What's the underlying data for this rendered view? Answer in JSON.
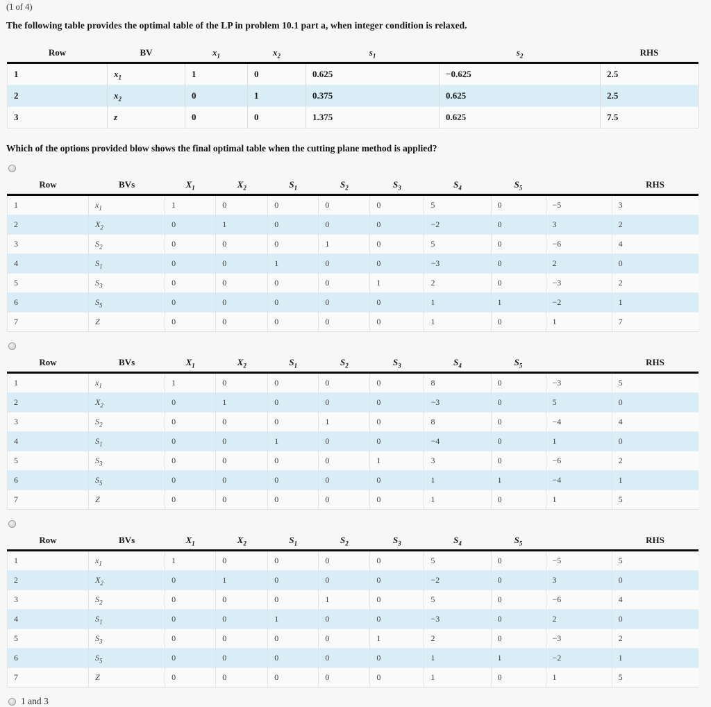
{
  "page": {
    "pagination": "(1 of 4)",
    "intro": "The following table provides the optimal table of the LP in problem 10.1 part a, when integer condition is relaxed.",
    "question": "Which of the options provided blow shows the final optimal table when the cutting plane method is applied?"
  },
  "colors": {
    "row_highlight": "#d9edf7",
    "header_rule": "#0a0a0a",
    "page_background": "#f7f7f7"
  },
  "relaxed_table": {
    "headers": [
      "Row",
      "BV",
      "$x_1",
      "$x_2",
      "$s_1",
      "$s_2",
      "RHS"
    ],
    "rows": [
      [
        "1",
        "$x_1",
        "1",
        "0",
        "0.625",
        "−0.625",
        "2.5"
      ],
      [
        "2",
        "$x_2",
        "0",
        "1",
        "0.375",
        "0.625",
        "2.5"
      ],
      [
        "3",
        "$z",
        "0",
        "0",
        "1.375",
        "0.625",
        "7.5"
      ]
    ]
  },
  "options": [
    {
      "id": "option-1",
      "table": {
        "headers": [
          "Row",
          "BVs",
          "$X_1",
          "$X_2",
          "$S_1",
          "$S_2",
          "$S_3",
          "$S_4",
          "$S_5",
          "",
          "RHS"
        ],
        "rows": [
          [
            "1",
            "$x_1",
            "1",
            "0",
            "0",
            "0",
            "0",
            "5",
            "0",
            "−5",
            "3"
          ],
          [
            "2",
            "$X_2",
            "0",
            "1",
            "0",
            "0",
            "0",
            "−2",
            "0",
            "3",
            "2"
          ],
          [
            "3",
            "$S_2",
            "0",
            "0",
            "0",
            "1",
            "0",
            "5",
            "0",
            "−6",
            "4"
          ],
          [
            "4",
            "$S_1",
            "0",
            "0",
            "1",
            "0",
            "0",
            "−3",
            "0",
            "2",
            "0"
          ],
          [
            "5",
            "$S_3",
            "0",
            "0",
            "0",
            "0",
            "1",
            "2",
            "0",
            "−3",
            "2"
          ],
          [
            "6",
            "$S_5",
            "0",
            "0",
            "0",
            "0",
            "0",
            "1",
            "1",
            "−2",
            "1"
          ],
          [
            "7",
            "$Z",
            "0",
            "0",
            "0",
            "0",
            "0",
            "1",
            "0",
            "1",
            "7"
          ]
        ]
      }
    },
    {
      "id": "option-2",
      "table": {
        "headers": [
          "Row",
          "BVs",
          "$X_1",
          "$X_2",
          "$S_1",
          "$S_2",
          "$S_3",
          "$S_4",
          "$S_5",
          "",
          "RHS"
        ],
        "rows": [
          [
            "1",
            "$x_1",
            "1",
            "0",
            "0",
            "0",
            "0",
            "8",
            "0",
            "−3",
            "5"
          ],
          [
            "2",
            "$X_2",
            "0",
            "1",
            "0",
            "0",
            "0",
            "−3",
            "0",
            "5",
            "0"
          ],
          [
            "3",
            "$S_2",
            "0",
            "0",
            "0",
            "1",
            "0",
            "8",
            "0",
            "−4",
            "4"
          ],
          [
            "4",
            "$S_1",
            "0",
            "0",
            "1",
            "0",
            "0",
            "−4",
            "0",
            "1",
            "0"
          ],
          [
            "5",
            "$S_3",
            "0",
            "0",
            "0",
            "0",
            "1",
            "3",
            "0",
            "−6",
            "2"
          ],
          [
            "6",
            "$S_5",
            "0",
            "0",
            "0",
            "0",
            "0",
            "1",
            "1",
            "−4",
            "1"
          ],
          [
            "7",
            "$Z",
            "0",
            "0",
            "0",
            "0",
            "0",
            "1",
            "0",
            "1",
            "5"
          ]
        ]
      }
    },
    {
      "id": "option-3",
      "table": {
        "headers": [
          "Row",
          "BVs",
          "$X_1",
          "$X_2",
          "$S_1",
          "$S_2",
          "$S_3",
          "$S_4",
          "$S_5",
          "",
          "RHS"
        ],
        "rows": [
          [
            "1",
            "$x_1",
            "1",
            "0",
            "0",
            "0",
            "0",
            "5",
            "0",
            "−5",
            "5"
          ],
          [
            "2",
            "$X_2",
            "0",
            "1",
            "0",
            "0",
            "0",
            "−2",
            "0",
            "3",
            "0"
          ],
          [
            "3",
            "$S_2",
            "0",
            "0",
            "0",
            "1",
            "0",
            "5",
            "0",
            "−6",
            "4"
          ],
          [
            "4",
            "$S_1",
            "0",
            "0",
            "1",
            "0",
            "0",
            "−3",
            "0",
            "2",
            "0"
          ],
          [
            "5",
            "$S_3",
            "0",
            "0",
            "0",
            "0",
            "1",
            "2",
            "0",
            "−3",
            "2"
          ],
          [
            "6",
            "$S_5",
            "0",
            "0",
            "0",
            "0",
            "0",
            "1",
            "1",
            "−2",
            "1"
          ],
          [
            "7",
            "$Z",
            "0",
            "0",
            "0",
            "0",
            "0",
            "1",
            "0",
            "1",
            "5"
          ]
        ]
      }
    }
  ],
  "final_option": {
    "label": "1 and 3"
  }
}
